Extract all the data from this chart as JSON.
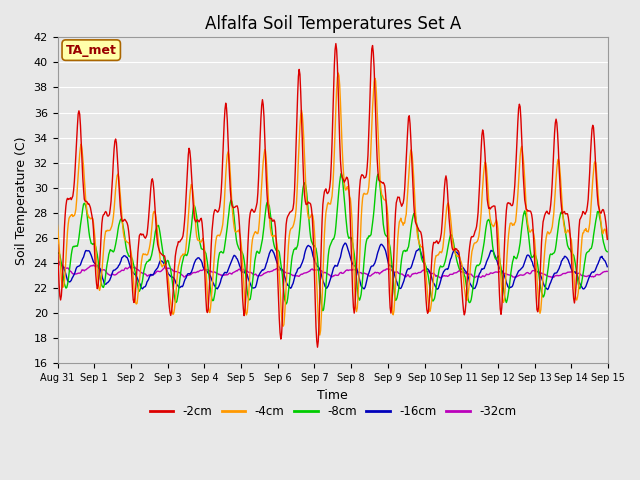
{
  "title": "Alfalfa Soil Temperatures Set A",
  "xlabel": "Time",
  "ylabel": "Soil Temperature (C)",
  "ylim": [
    16,
    42
  ],
  "yticks": [
    16,
    18,
    20,
    22,
    24,
    26,
    28,
    30,
    32,
    34,
    36,
    38,
    40,
    42
  ],
  "plot_bg_color": "#e8e8e8",
  "grid_color": "#ffffff",
  "legend_labels": [
    "-2cm",
    "-4cm",
    "-8cm",
    "-16cm",
    "-32cm"
  ],
  "legend_colors": [
    "#dd0000",
    "#ff9900",
    "#00cc00",
    "#0000bb",
    "#bb00bb"
  ],
  "annotation_text": "TA_met",
  "annotation_color": "#990000",
  "annotation_bg": "#ffffaa",
  "annotation_border": "#aa6600",
  "num_days": 15,
  "points_per_day": 48,
  "figsize": [
    6.4,
    4.8
  ],
  "dpi": 100
}
